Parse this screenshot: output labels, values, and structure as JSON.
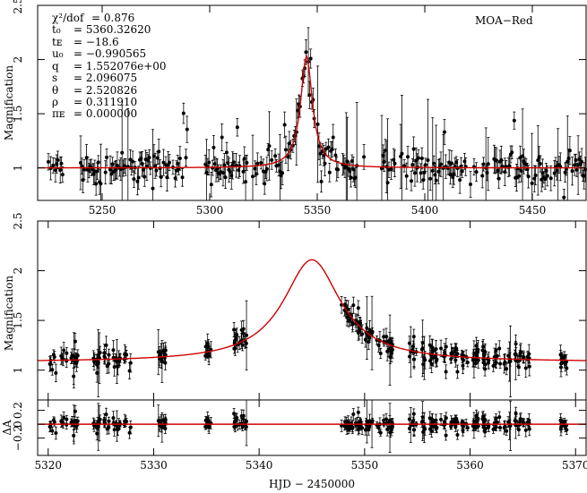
{
  "chart_data": [
    {
      "type": "scatter",
      "panel": "top",
      "title": "",
      "xlabel": "",
      "ylabel": "Magnification",
      "xlim": [
        5220,
        5475
      ],
      "ylim": [
        0.7,
        2.5
      ],
      "xticks": [
        5250,
        5300,
        5350,
        5400,
        5450
      ],
      "yticks": [
        1,
        1.5,
        2,
        2.5
      ],
      "ytick_labels": [
        "1",
        "1.5",
        "2",
        "2.5"
      ],
      "legend": "top-right",
      "label": "MOA−Red",
      "params": [
        {
          "name": "χ²/dof",
          "value": "= 0.876"
        },
        {
          "name": "t₀",
          "value": "= 5360.32620"
        },
        {
          "name": "tᴇ",
          "value": "= −18.6"
        },
        {
          "name": "u₀",
          "value": "= −0.990565"
        },
        {
          "name": "q",
          "value": "= 1.552076e+00"
        },
        {
          "name": "s",
          "value": "= 2.096075"
        },
        {
          "name": "θ",
          "value": "= 2.520826"
        },
        {
          "name": "ρ",
          "value": "= 0.311910"
        },
        {
          "name": "πᴇ",
          "value": "= 0.000000"
        }
      ],
      "series": [
        {
          "name": "MOA-Red data",
          "kind": "points",
          "color": "#000000"
        },
        {
          "name": "model",
          "kind": "line",
          "color": "#d00000",
          "peak_x": 5345,
          "peak_y": 2.03,
          "baseline": 1.0
        }
      ]
    },
    {
      "type": "scatter",
      "panel": "middle",
      "xlabel": "",
      "ylabel": "Magnification",
      "xlim": [
        5319,
        5371
      ],
      "ylim": [
        0.7,
        2.5
      ],
      "xticks": [
        5320,
        5330,
        5340,
        5350,
        5360,
        5370
      ],
      "yticks": [
        1,
        1.5,
        2,
        2.5
      ],
      "ytick_labels": [
        "1",
        "1.5",
        "2",
        "2.5"
      ],
      "series": [
        {
          "name": "data",
          "kind": "points",
          "color": "#000000"
        },
        {
          "name": "model",
          "kind": "line",
          "color": "#d00000",
          "peak_x": 5345,
          "peak_y": 2.03,
          "baseline": 1.08
        }
      ]
    },
    {
      "type": "scatter",
      "panel": "residual",
      "xlabel": "HJD − 2450000",
      "ylabel": "ΔA",
      "xlim": [
        5319,
        5371
      ],
      "ylim": [
        -0.45,
        0.35
      ],
      "xticks": [
        5320,
        5330,
        5340,
        5350,
        5360,
        5370
      ],
      "xtick_labels": [
        "5320",
        "5330",
        "5340",
        "5350",
        "5360",
        "5370"
      ],
      "yticks": [
        -0.2,
        0,
        0.2
      ],
      "ytick_labels": [
        "−0.2",
        "0",
        "0.2"
      ],
      "series": [
        {
          "name": "residuals",
          "kind": "points",
          "color": "#000000"
        },
        {
          "name": "zero",
          "kind": "line",
          "color": "#d00000",
          "y": 0
        }
      ]
    }
  ]
}
